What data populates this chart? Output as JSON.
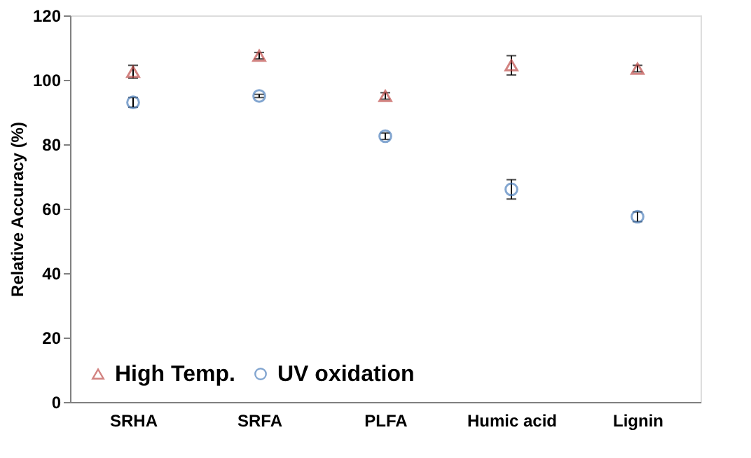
{
  "chart_data": {
    "type": "scatter",
    "ylabel": "Relative Accuracy (%)",
    "categories": [
      "SRHA",
      "SRFA",
      "PLFA",
      "Humic acid",
      "Lignin"
    ],
    "series": [
      {
        "name": "High Temp.",
        "color": "#c0504d",
        "marker": "triangle",
        "values": [
          102.5,
          107.5,
          95,
          104.5,
          103.5
        ],
        "errors": [
          2,
          1,
          1,
          3,
          1
        ]
      },
      {
        "name": "UV oxidation",
        "color": "#4f81bd",
        "marker": "circle",
        "values": [
          93,
          95,
          82.5,
          66,
          57.5
        ],
        "errors": [
          1.5,
          0.5,
          1,
          3,
          1.5
        ]
      }
    ],
    "ylim": [
      0,
      120
    ],
    "yticks": [
      0,
      20,
      40,
      60,
      80,
      100,
      120
    ],
    "grid": false,
    "legend": "bottom left"
  }
}
